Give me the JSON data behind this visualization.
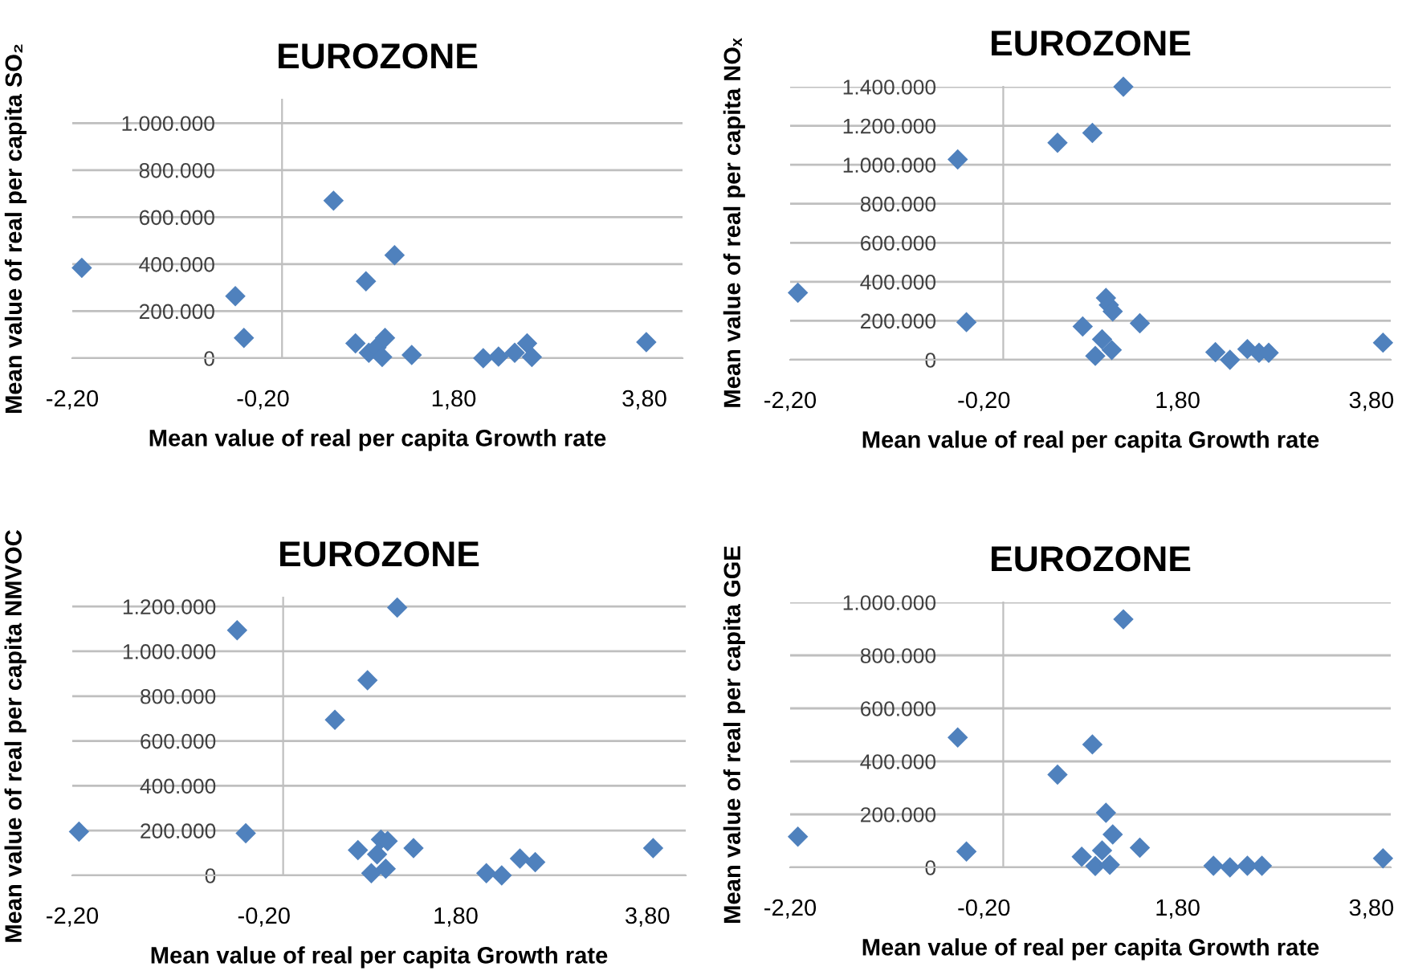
{
  "chart_data": [
    {
      "type": "scatter",
      "title": "EUROZONE",
      "xlabel": "Mean value of real per capita Growth rate",
      "ylabel": "Mean value of real per capita SO₂",
      "color": "#4f81bd",
      "marker": "diamond",
      "grid": "y",
      "x": [
        -2.1,
        -0.49,
        -0.4,
        0.54,
        0.77,
        0.88,
        0.91,
        0.99,
        1.05,
        1.08,
        1.18,
        1.36,
        2.11,
        2.27,
        2.44,
        2.57,
        2.62,
        3.82
      ],
      "values": [
        384000,
        264000,
        86000,
        670000,
        63000,
        327000,
        23000,
        45000,
        5000,
        86000,
        438000,
        14000,
        0,
        7000,
        23000,
        63000,
        5000,
        68000
      ],
      "xlim": [
        -2.2,
        4.2
      ],
      "ylim": [
        0,
        1100000
      ],
      "xticks": [
        {
          "value": -2.2,
          "label": "-2,20"
        },
        {
          "value": -0.2,
          "label": "-0,20"
        },
        {
          "value": 1.8,
          "label": "1,80"
        },
        {
          "value": 3.8,
          "label": "3,80"
        }
      ],
      "yticks": [
        {
          "value": 0,
          "label": "0"
        },
        {
          "value": 200000,
          "label": "200.000"
        },
        {
          "value": 400000,
          "label": "400.000"
        },
        {
          "value": 600000,
          "label": "600.000"
        },
        {
          "value": 800000,
          "label": "800.000"
        },
        {
          "value": 1000000,
          "label": "1.000.000"
        }
      ]
    },
    {
      "type": "scatter",
      "title": "EUROZONE",
      "xlabel": "Mean value of real per capita Growth rate",
      "ylabel": "Mean value of real per capita NOₓ",
      "color": "#4f81bd",
      "marker": "diamond",
      "grid": "y",
      "x": [
        -2.12,
        -0.47,
        -0.38,
        0.56,
        0.82,
        0.92,
        0.95,
        1.02,
        1.06,
        1.09,
        1.13,
        1.12,
        1.24,
        1.41,
        2.19,
        2.34,
        2.52,
        2.64,
        2.74,
        3.92
      ],
      "values": [
        344000,
        1027000,
        193000,
        1113000,
        171000,
        1163000,
        20000,
        105000,
        317000,
        281000,
        248000,
        50000,
        1400000,
        187000,
        39000,
        0,
        55000,
        36000,
        36000,
        88000
      ],
      "xlim": [
        -2.2,
        4.0
      ],
      "ylim": [
        0,
        1400000
      ],
      "xticks": [
        {
          "value": -2.2,
          "label": "-2,20"
        },
        {
          "value": -0.2,
          "label": "-0,20"
        },
        {
          "value": 1.8,
          "label": "1,80"
        },
        {
          "value": 3.8,
          "label": "3,80"
        }
      ],
      "yticks": [
        {
          "value": 0,
          "label": "0"
        },
        {
          "value": 200000,
          "label": "200.000"
        },
        {
          "value": 400000,
          "label": "400.000"
        },
        {
          "value": 600000,
          "label": "600.000"
        },
        {
          "value": 800000,
          "label": "800.000"
        },
        {
          "value": 1000000,
          "label": "1.000.000"
        },
        {
          "value": 1200000,
          "label": "1.200.000"
        },
        {
          "value": 1400000,
          "label": "1.400.000"
        }
      ]
    },
    {
      "type": "scatter",
      "title": "EUROZONE",
      "xlabel": "Mean value of real per capita Growth rate",
      "ylabel": "Mean value of real per capita NMVOC",
      "color": "#4f81bd",
      "marker": "diamond",
      "grid": "y",
      "x": [
        -2.13,
        -0.48,
        -0.39,
        0.54,
        0.78,
        0.88,
        0.92,
        0.98,
        1.02,
        1.07,
        1.09,
        1.19,
        1.36,
        2.12,
        2.28,
        2.47,
        2.63,
        3.86
      ],
      "values": [
        195000,
        1094000,
        188000,
        694000,
        113000,
        871000,
        10000,
        94000,
        160000,
        30000,
        153000,
        1195000,
        122000,
        10000,
        0,
        75000,
        59000,
        122000
      ],
      "xlim": [
        -2.2,
        4.2
      ],
      "ylim": [
        0,
        1240000
      ],
      "xticks": [
        {
          "value": -2.2,
          "label": "-2,20"
        },
        {
          "value": -0.2,
          "label": "-0,20"
        },
        {
          "value": 1.8,
          "label": "1,80"
        },
        {
          "value": 3.8,
          "label": "3,80"
        }
      ],
      "yticks": [
        {
          "value": 0,
          "label": "0"
        },
        {
          "value": 200000,
          "label": "200.000"
        },
        {
          "value": 400000,
          "label": "400.000"
        },
        {
          "value": 600000,
          "label": "600.000"
        },
        {
          "value": 800000,
          "label": "800.000"
        },
        {
          "value": 1000000,
          "label": "1.000.000"
        },
        {
          "value": 1200000,
          "label": "1.200.000"
        }
      ]
    },
    {
      "type": "scatter",
      "title": "EUROZONE",
      "xlabel": "Mean value of real per capita Growth rate",
      "ylabel": "Mean value of real per capita GGE",
      "color": "#4f81bd",
      "marker": "diamond",
      "grid": "y",
      "x": [
        -2.12,
        -0.47,
        -0.38,
        0.56,
        0.81,
        0.92,
        0.95,
        1.02,
        1.06,
        1.1,
        1.13,
        1.24,
        1.41,
        2.17,
        2.34,
        2.52,
        2.67,
        3.92
      ],
      "values": [
        116000,
        490000,
        60000,
        350000,
        40000,
        464000,
        5000,
        64000,
        206000,
        10000,
        124000,
        936000,
        74000,
        6000,
        0,
        6000,
        6000,
        34000
      ],
      "xlim": [
        -2.2,
        4.0
      ],
      "ylim": [
        0,
        1000000
      ],
      "xticks": [
        {
          "value": -2.2,
          "label": "-2,20"
        },
        {
          "value": -0.2,
          "label": "-0,20"
        },
        {
          "value": 1.8,
          "label": "1,80"
        },
        {
          "value": 3.8,
          "label": "3,80"
        }
      ],
      "yticks": [
        {
          "value": 0,
          "label": "0"
        },
        {
          "value": 200000,
          "label": "200.000"
        },
        {
          "value": 400000,
          "label": "400.000"
        },
        {
          "value": 600000,
          "label": "600.000"
        },
        {
          "value": 800000,
          "label": "800.000"
        },
        {
          "value": 1000000,
          "label": "1.000.000"
        }
      ]
    }
  ]
}
